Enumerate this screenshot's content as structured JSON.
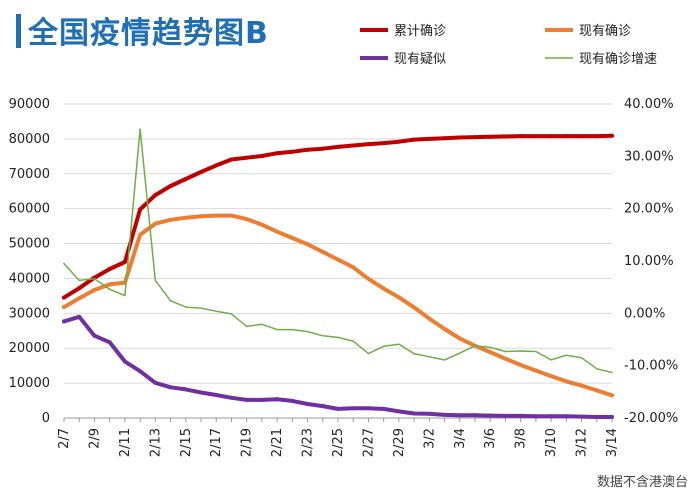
{
  "title": "全国疫情趋势图B",
  "source": "数据不含港澳台",
  "colors": {
    "title": "#1f6fb5",
    "cumulative_confirmed": "#c00000",
    "current_confirmed": "#ed7d31",
    "current_suspected": "#7030a0",
    "growth_rate": "#70ad47"
  },
  "chart_data": {
    "type": "line",
    "title": "全国疫情趋势图B",
    "legend_position": "top-right",
    "grid": true,
    "x_tick_labels": [
      "2/7",
      "2/9",
      "2/11",
      "2/13",
      "2/15",
      "2/17",
      "2/19",
      "2/21",
      "2/23",
      "2/25",
      "2/27",
      "2/29",
      "3/2",
      "3/4",
      "3/6",
      "3/8",
      "3/10",
      "3/12",
      "3/14"
    ],
    "x": [
      "2/7",
      "2/8",
      "2/9",
      "2/10",
      "2/11",
      "2/12",
      "2/13",
      "2/14",
      "2/15",
      "2/16",
      "2/17",
      "2/18",
      "2/19",
      "2/20",
      "2/21",
      "2/22",
      "2/23",
      "2/24",
      "2/25",
      "2/26",
      "2/27",
      "2/28",
      "2/29",
      "3/1",
      "3/2",
      "3/3",
      "3/4",
      "3/5",
      "3/6",
      "3/7",
      "3/8",
      "3/9",
      "3/10",
      "3/11",
      "3/12",
      "3/13",
      "3/14"
    ],
    "y_left": {
      "ylim": [
        0,
        90000
      ],
      "ticks": [
        0,
        10000,
        20000,
        30000,
        40000,
        50000,
        60000,
        70000,
        80000,
        90000
      ]
    },
    "y_right": {
      "ylim": [
        -20,
        40
      ],
      "ticks": [
        "-20.00%",
        "-10.00%",
        "0.00%",
        "10.00%",
        "20.00%",
        "30.00%",
        "40.00%"
      ],
      "tick_values": [
        -20,
        -10,
        0,
        10,
        20,
        30,
        40
      ]
    },
    "series": [
      {
        "name": "累计确诊",
        "axis": "left",
        "color_key": "cumulative_confirmed",
        "values": [
          34500,
          37200,
          40200,
          42700,
          44700,
          59800,
          63900,
          66500,
          68500,
          70500,
          72400,
          74100,
          74600,
          75100,
          75900,
          76300,
          76900,
          77200,
          77700,
          78100,
          78500,
          78800,
          79200,
          79800,
          80000,
          80200,
          80400,
          80500,
          80600,
          80700,
          80800,
          80800,
          80800,
          80800,
          80800,
          80800,
          80900
        ]
      },
      {
        "name": "现有确诊",
        "axis": "left",
        "color_key": "current_confirmed",
        "values": [
          31800,
          34300,
          36700,
          38300,
          38800,
          52500,
          55700,
          56800,
          57400,
          57800,
          58000,
          58000,
          57000,
          55400,
          53400,
          51600,
          49800,
          47600,
          45400,
          43200,
          39900,
          37100,
          34600,
          31700,
          28500,
          25500,
          22800,
          20700,
          18900,
          17000,
          15200,
          13600,
          12000,
          10500,
          9300,
          7900,
          6500
        ]
      },
      {
        "name": "现有疑似",
        "axis": "left",
        "color_key": "current_suspected",
        "values": [
          27700,
          29000,
          23600,
          21700,
          16200,
          13400,
          10100,
          8800,
          8200,
          7300,
          6600,
          5800,
          5200,
          5200,
          5400,
          4900,
          4000,
          3400,
          2600,
          2800,
          2800,
          2600,
          1900,
          1300,
          1200,
          900,
          800,
          800,
          700,
          600,
          600,
          500,
          500,
          500,
          400,
          300,
          300
        ]
      },
      {
        "name": "现有确诊增速",
        "axis": "right",
        "color_key": "growth_rate",
        "values": [
          9.5,
          6.3,
          6.6,
          4.6,
          3.4,
          35.2,
          6.3,
          2.4,
          1.2,
          1.0,
          0.4,
          -0.1,
          -2.5,
          -2.1,
          -3.1,
          -3.1,
          -3.5,
          -4.3,
          -4.6,
          -5.3,
          -7.7,
          -6.3,
          -5.9,
          -7.7,
          -8.3,
          -8.9,
          -7.6,
          -6.2,
          -6.5,
          -7.3,
          -7.2,
          -7.3,
          -8.9,
          -8.0,
          -8.5,
          -10.6,
          -11.3
        ]
      }
    ]
  }
}
